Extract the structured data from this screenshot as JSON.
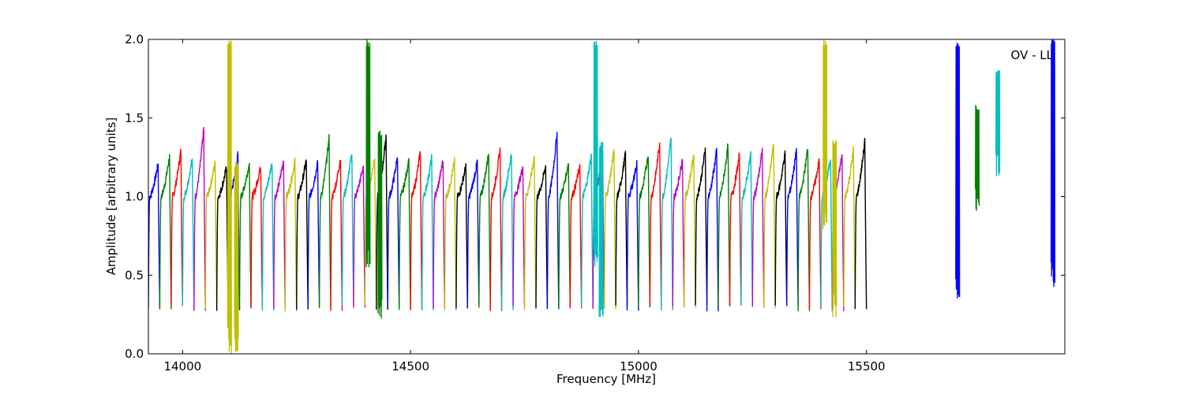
{
  "chart_data": {
    "type": "line",
    "title": "",
    "xlabel": "Frequency [MHz]",
    "ylabel": "Amplitude [arbitrary units]",
    "annotation": "OV - LL",
    "annotation_position": "top-right",
    "xlim": [
      13925,
      15935
    ],
    "ylim": [
      0,
      2.0
    ],
    "x_ticks": [
      14000,
      14500,
      15000,
      15500
    ],
    "y_ticks": [
      0.0,
      0.5,
      1.0,
      1.5,
      2.0
    ],
    "x_tick_labels": [
      "14000",
      "14500",
      "15000",
      "15500"
    ],
    "y_tick_labels": [
      "0.0",
      "0.5",
      "1.0",
      "1.5",
      "2.0"
    ],
    "grid": false,
    "legend": "none",
    "subband_width_mhz": 25,
    "first_subband_start_mhz": 13925,
    "colors": [
      "#0000ff",
      "#008000",
      "#ff0000",
      "#00bfbf",
      "#bf00bf",
      "#bfbf00",
      "#000000"
    ],
    "subband_peaks": [
      1.21,
      1.26,
      1.3,
      1.25,
      1.44,
      1.22,
      1.19,
      1.27,
      1.22,
      1.2,
      1.23,
      1.24,
      1.23,
      1.24,
      1.22,
      1.38,
      1.25,
      1.28,
      1.2,
      1.26,
      1.4,
      1.26,
      1.24,
      1.29,
      1.25,
      1.24,
      1.23,
      1.2,
      1.23,
      1.29,
      1.3,
      1.29,
      1.2,
      1.26,
      1.2,
      1.41,
      1.22,
      1.2,
      1.27,
      1.29,
      1.3,
      1.28,
      1.22,
      1.28,
      1.35,
      1.38,
      1.25,
      1.28,
      1.31,
      1.3,
      1.33,
      1.27,
      1.28,
      1.3,
      1.35,
      1.28,
      1.3,
      1.32,
      1.24,
      1.25,
      1.27,
      1.3,
      1.36
    ],
    "spikes": [
      {
        "x": 14103,
        "ymin": 0.0,
        "ymax": 2.0,
        "color": "#bfbf00"
      },
      {
        "x": 14118,
        "ymin": 0.0,
        "ymax": 1.22,
        "color": "#bfbf00"
      },
      {
        "x": 14407,
        "ymin": 0.5,
        "ymax": 2.0,
        "color": "#008000"
      },
      {
        "x": 14433,
        "ymin": 0.21,
        "ymax": 1.42,
        "color": "#008000"
      },
      {
        "x": 14906,
        "ymin": 0.5,
        "ymax": 2.0,
        "color": "#00bfbf"
      },
      {
        "x": 14918,
        "ymin": 0.22,
        "ymax": 1.35,
        "color": "#00bfbf"
      },
      {
        "x": 15409,
        "ymin": 0.77,
        "ymax": 2.0,
        "color": "#bfbf00"
      },
      {
        "x": 15430,
        "ymin": 0.23,
        "ymax": 1.38,
        "color": "#bfbf00"
      },
      {
        "x": 15700,
        "ymin": 0.3,
        "ymax": 2.0,
        "color": "#0000ff"
      },
      {
        "x": 15743,
        "ymin": 0.9,
        "ymax": 1.59,
        "color": "#008000"
      },
      {
        "x": 15788,
        "ymin": 1.12,
        "ymax": 1.81,
        "color": "#00bfbf"
      },
      {
        "x": 15909,
        "ymin": 0.4,
        "ymax": 2.0,
        "color": "#0000ff"
      }
    ]
  }
}
